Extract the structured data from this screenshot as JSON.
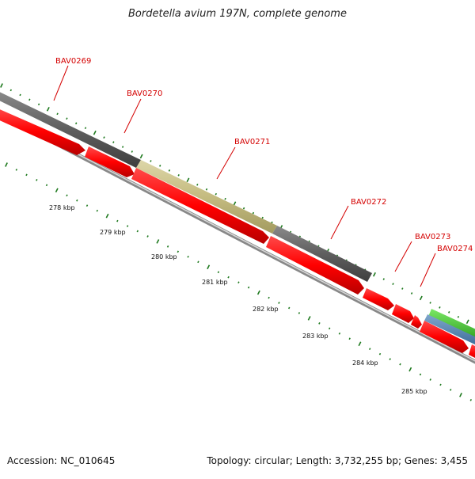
{
  "title": "Bordetella avium 197N, complete genome",
  "accession": "Accession: NC_010645",
  "summary": "Topology: circular; Length: 3,732,255 bp; Genes: 3,455",
  "colors": {
    "gene_label": "#d40000",
    "forward_cds": "#ff0000",
    "highlight_gene": "#c8c08a",
    "dark_gene": "#6a6a6a",
    "green_gene": "#44cc33",
    "blue_gene": "#5588bb",
    "tick": "#1f7a1f"
  },
  "gene_labels": [
    "BAV0269",
    "BAV0270",
    "BAV0271",
    "BAV0272",
    "BAV0273",
    "BAV0274"
  ],
  "scale_labels": [
    "278 kbp",
    "279 kbp",
    "280 kbp",
    "281 kbp",
    "282 kbp",
    "283 kbp",
    "284 kbp",
    "285 kbp"
  ]
}
